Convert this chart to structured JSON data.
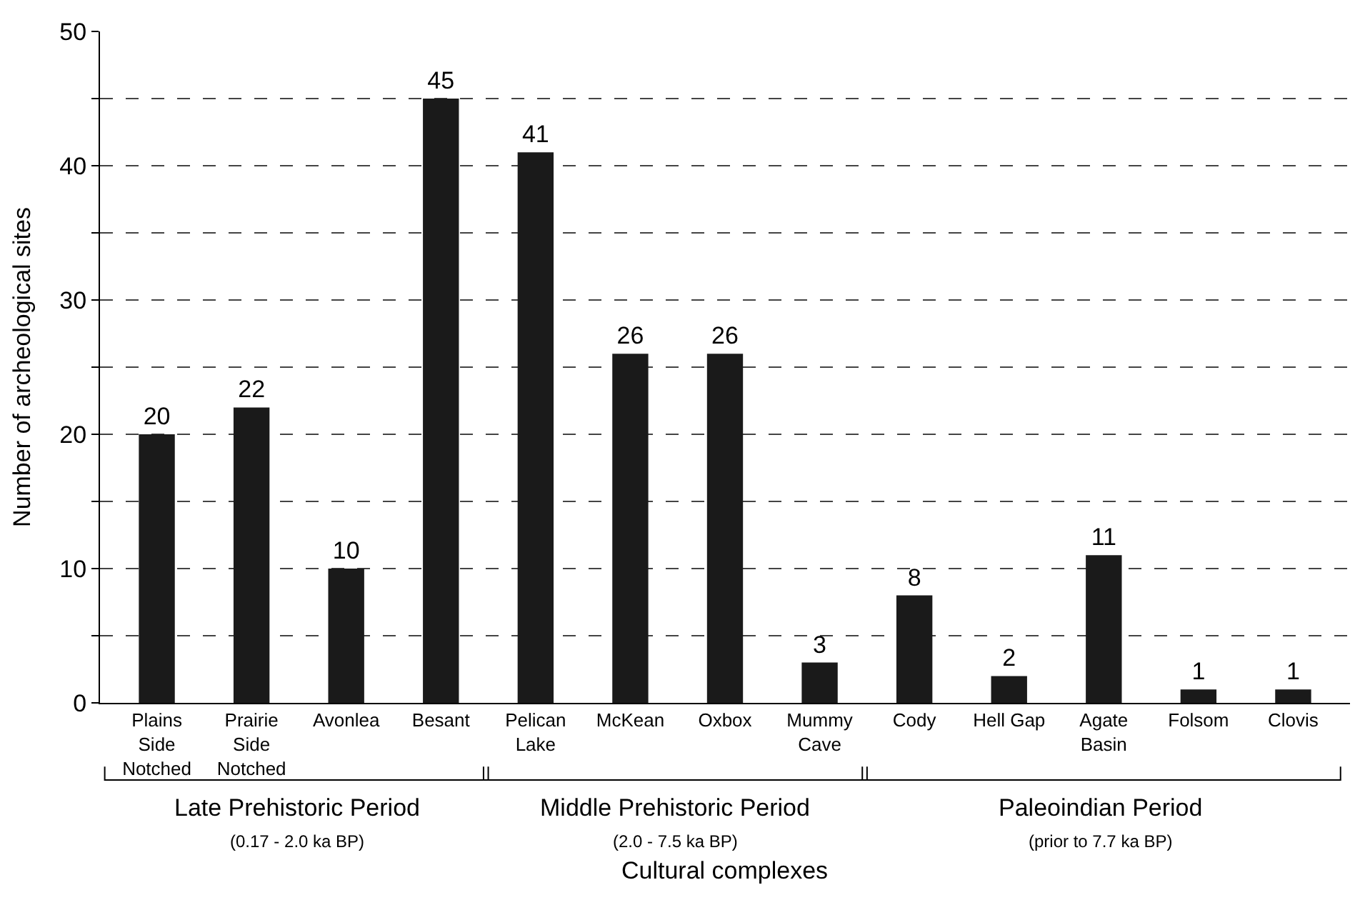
{
  "chart_data": {
    "type": "bar",
    "xlabel": "Cultural complexes",
    "ylabel": "Number of archeological sites",
    "categories": [
      "Plains\nSide\nNotched",
      "Prairie\nSide\nNotched",
      "Avonlea",
      "Besant",
      "Pelican\nLake",
      "McKean",
      "Oxbox",
      "Mummy\nCave",
      "Cody",
      "Hell Gap",
      "Agate\nBasin",
      "Folsom",
      "Clovis"
    ],
    "values": [
      20,
      22,
      10,
      45,
      41,
      26,
      26,
      3,
      8,
      2,
      11,
      1,
      1
    ],
    "color": "#1a1a1a",
    "data_labels": true,
    "ylim": [
      0,
      50
    ],
    "yticks": [
      0,
      {
        "value": 5,
        "label": null
      },
      10,
      {
        "value": 15,
        "label": null
      },
      20,
      {
        "value": 25,
        "label": null
      },
      30,
      {
        "value": 35,
        "label": null
      },
      40,
      {
        "value": 45,
        "label": null
      },
      50
    ],
    "grid": "y",
    "annotations": [
      "Late Prehistoric Period",
      "(0.17 - 2.0 ka BP)",
      "Middle Prehistoric Period",
      "(2.0 - 7.5 ka BP)",
      "Paleoindian Period",
      "(prior to 7.7 ka BP)"
    ]
  }
}
